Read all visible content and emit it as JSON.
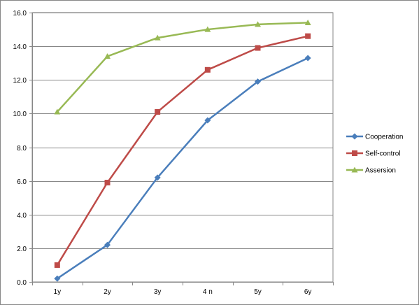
{
  "chart_data": {
    "type": "line",
    "categories": [
      "1y",
      "2y",
      "3y",
      "4 n",
      "5y",
      "6y"
    ],
    "ylim": [
      0,
      16
    ],
    "yticks": [
      "0.0",
      "2.0",
      "4.0",
      "6.0",
      "8.0",
      "10.0",
      "12.0",
      "14.0",
      "16.0"
    ],
    "grid": true,
    "legend_position": "right",
    "series": [
      {
        "name": "Cooperation",
        "color": "#4a7ebb",
        "marker": "diamond",
        "values": [
          0.2,
          2.2,
          6.2,
          9.6,
          11.9,
          13.3
        ]
      },
      {
        "name": "Self-control",
        "color": "#be4b48",
        "marker": "square",
        "values": [
          1.0,
          5.9,
          10.1,
          12.6,
          13.9,
          14.6
        ]
      },
      {
        "name": "Assersion",
        "color": "#98b954",
        "marker": "triangle",
        "values": [
          10.1,
          13.4,
          14.5,
          15.0,
          15.3,
          15.4
        ]
      }
    ]
  }
}
